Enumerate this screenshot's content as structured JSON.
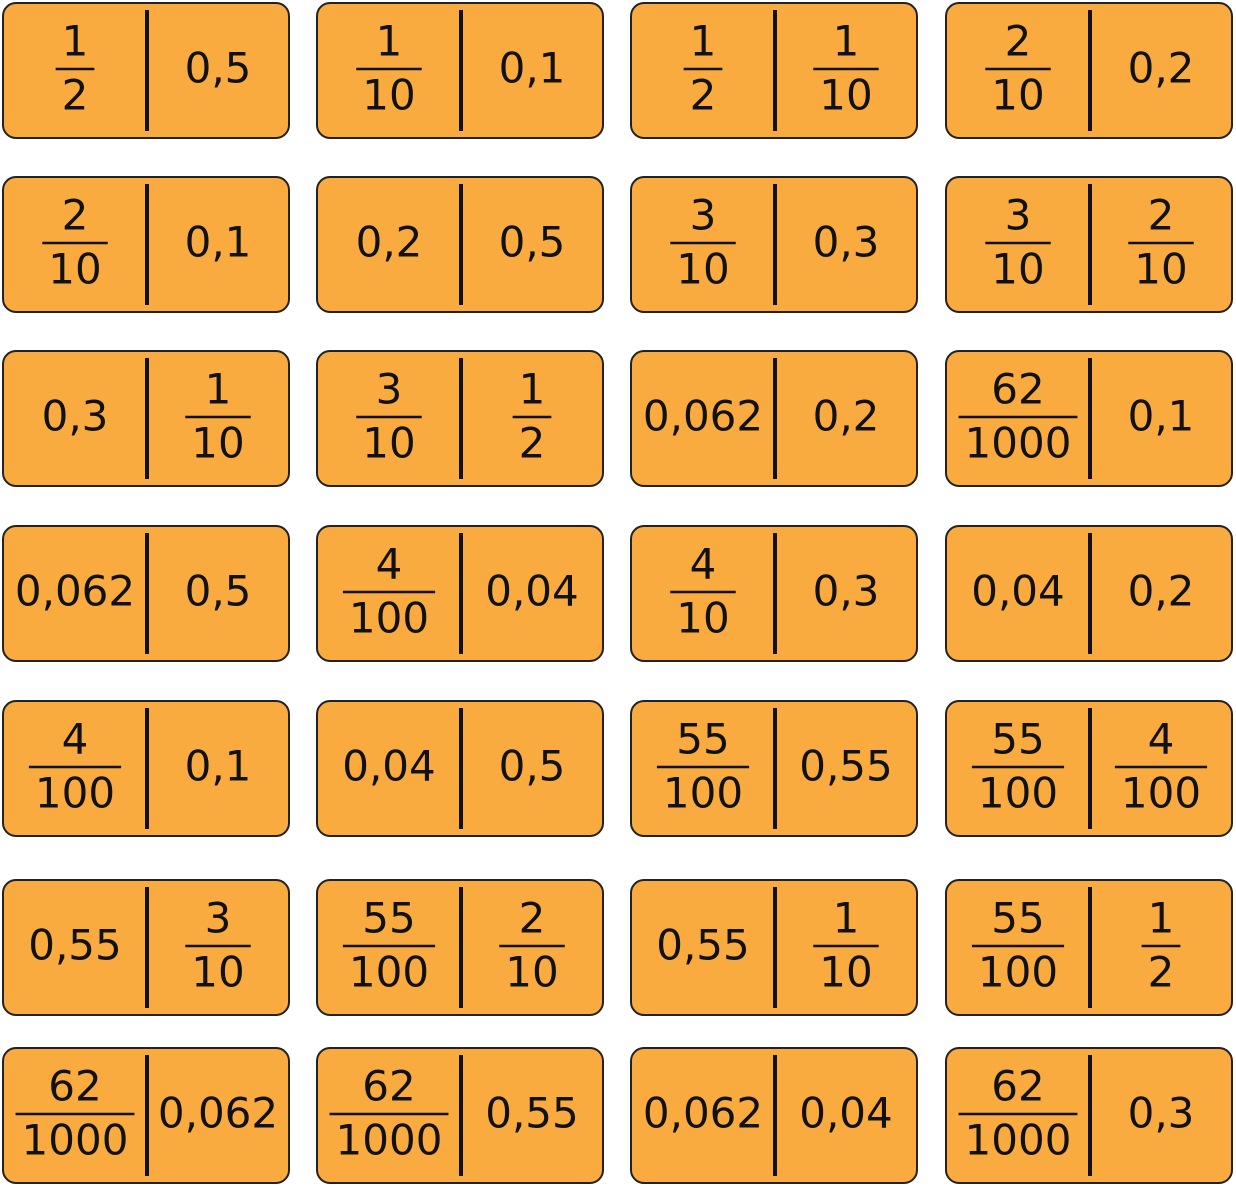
{
  "dominoes": [
    {
      "left": {
        "num": "1",
        "den": "2"
      },
      "right": "0,5"
    },
    {
      "left": {
        "num": "1",
        "den": "10"
      },
      "right": "0,1"
    },
    {
      "left": {
        "num": "1",
        "den": "2"
      },
      "right": {
        "num": "1",
        "den": "10"
      }
    },
    {
      "left": {
        "num": "2",
        "den": "10"
      },
      "right": "0,2"
    },
    {
      "left": {
        "num": "2",
        "den": "10"
      },
      "right": "0,1"
    },
    {
      "left": "0,2",
      "right": "0,5"
    },
    {
      "left": {
        "num": "3",
        "den": "10"
      },
      "right": "0,3"
    },
    {
      "left": {
        "num": "3",
        "den": "10"
      },
      "right": {
        "num": "2",
        "den": "10"
      }
    },
    {
      "left": "0,3",
      "right": {
        "num": "1",
        "den": "10"
      }
    },
    {
      "left": {
        "num": "3",
        "den": "10"
      },
      "right": {
        "num": "1",
        "den": "2"
      }
    },
    {
      "left": "0,062",
      "right": "0,2"
    },
    {
      "left": {
        "num": "62",
        "den": "1000"
      },
      "right": "0,1"
    },
    {
      "left": "0,062",
      "right": "0,5"
    },
    {
      "left": {
        "num": "4",
        "den": "100"
      },
      "right": "0,04"
    },
    {
      "left": {
        "num": "4",
        "den": "10"
      },
      "right": "0,3"
    },
    {
      "left": "0,04",
      "right": "0,2"
    },
    {
      "left": {
        "num": "4",
        "den": "100"
      },
      "right": "0,1"
    },
    {
      "left": "0,04",
      "right": "0,5"
    },
    {
      "left": {
        "num": "55",
        "den": "100"
      },
      "right": "0,55"
    },
    {
      "left": {
        "num": "55",
        "den": "100"
      },
      "right": {
        "num": "4",
        "den": "100"
      }
    },
    {
      "left": "0,55",
      "right": {
        "num": "3",
        "den": "10"
      }
    },
    {
      "left": {
        "num": "55",
        "den": "100"
      },
      "right": {
        "num": "2",
        "den": "10"
      }
    },
    {
      "left": "0,55",
      "right": {
        "num": "1",
        "den": "10"
      }
    },
    {
      "left": {
        "num": "55",
        "den": "100"
      },
      "right": {
        "num": "1",
        "den": "2"
      }
    },
    {
      "left": {
        "num": "62",
        "den": "1000"
      },
      "right": "0,062"
    },
    {
      "left": {
        "num": "62",
        "den": "1000"
      },
      "right": "0,55"
    },
    {
      "left": "0,062",
      "right": "0,04"
    },
    {
      "left": {
        "num": "62",
        "den": "1000"
      },
      "right": "0,3"
    }
  ]
}
